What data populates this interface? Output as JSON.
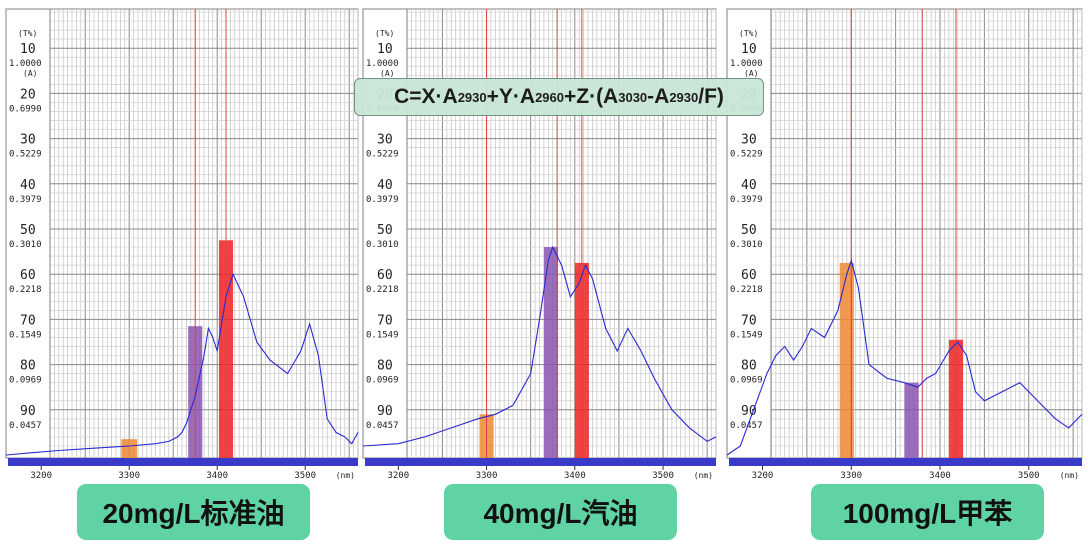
{
  "formula": {
    "prefix": "C=X·A",
    "s1": "2930",
    "mid1": "+Y·A",
    "s2": "2960",
    "mid2": "+Z·(A",
    "s3": "3030",
    "mid3": "-A",
    "s4": "2930",
    "suffix": "/F)"
  },
  "labels": [
    "20mg/L标准油",
    "40mg/L汽油",
    "100mg/L甲苯"
  ],
  "colors": {
    "spectrum": "#2a2ad6",
    "orange_bar": "#ee8833",
    "purple_bar": "#8a55b0",
    "red_bar": "#ee2222",
    "baseline_bar": "#3a3ac8",
    "label_box": "#5fd3a4",
    "formula_box": "#c9e6d6"
  },
  "chart_data": [
    {
      "type": "line",
      "caption": "20mg/L标准油",
      "transmittance_unit": "(T%)",
      "absorbance_unit": "(A)",
      "x_unit": "(nm)",
      "transmittance_ticks": [
        "10",
        "20",
        "30",
        "40",
        "50",
        "60",
        "70",
        "80",
        "90"
      ],
      "absorbance_ticks": [
        "1.0000",
        "0.6990",
        "0.5229",
        "0.3979",
        "0.3010",
        "0.2218",
        "0.1549",
        "0.0969",
        "0.0457"
      ],
      "x_ticks": [
        "3200",
        "3300",
        "3400",
        "3500"
      ],
      "xlim": [
        3160,
        3560
      ],
      "ylim_transmittance": [
        0,
        100
      ],
      "grid": true,
      "x": [
        3160,
        3190,
        3220,
        3260,
        3300,
        3330,
        3345,
        3355,
        3360,
        3365,
        3375,
        3385,
        3390,
        3395,
        3400,
        3410,
        3418,
        3430,
        3445,
        3460,
        3480,
        3495,
        3505,
        3515,
        3525,
        3535,
        3545,
        3553,
        3560
      ],
      "y": [
        100,
        99.5,
        99,
        98.5,
        98,
        97.5,
        97,
        96,
        95,
        93,
        87,
        78,
        72,
        74,
        77,
        65,
        60,
        65,
        75,
        79,
        82,
        77,
        71,
        78,
        92,
        95,
        96,
        97.5,
        95
      ],
      "highlight_bars": [
        {
          "band": 3300,
          "width": 18,
          "top_transmittance": 96.5,
          "color": "orange"
        },
        {
          "band": 3375,
          "width": 16,
          "top_transmittance": 71.5,
          "color": "purple"
        },
        {
          "band": 3410,
          "width": 16,
          "top_transmittance": 52.5,
          "color": "red"
        }
      ],
      "marker_lines": [
        3375,
        3410
      ]
    },
    {
      "type": "line",
      "caption": "40mg/L汽油",
      "transmittance_unit": "(T%)",
      "absorbance_unit": "(A)",
      "x_unit": "(nm)",
      "transmittance_ticks": [
        "10",
        "20",
        "30",
        "40",
        "50",
        "60",
        "70",
        "80",
        "90"
      ],
      "absorbance_ticks": [
        "1.0000",
        "0.6990",
        "0.5229",
        "0.3979",
        "0.3010",
        "0.2218",
        "0.1549",
        "0.0969",
        "0.0457"
      ],
      "x_ticks": [
        "3200",
        "3300",
        "3400",
        "3500"
      ],
      "xlim": [
        3160,
        3560
      ],
      "ylim_transmittance": [
        0,
        100
      ],
      "grid": true,
      "x": [
        3160,
        3200,
        3230,
        3260,
        3290,
        3310,
        3330,
        3350,
        3360,
        3370,
        3375,
        3385,
        3395,
        3405,
        3412,
        3420,
        3435,
        3448,
        3460,
        3475,
        3490,
        3510,
        3530,
        3550,
        3560
      ],
      "y": [
        98,
        97.5,
        96,
        94,
        92,
        91,
        89,
        82,
        70,
        57,
        54,
        58,
        65,
        62,
        58,
        61,
        72,
        77,
        72,
        77,
        83,
        90,
        94,
        97,
        96
      ],
      "highlight_bars": [
        {
          "band": 3300,
          "width": 16,
          "top_transmittance": 91,
          "color": "orange"
        },
        {
          "band": 3373,
          "width": 16,
          "top_transmittance": 54,
          "color": "purple"
        },
        {
          "band": 3408,
          "width": 16,
          "top_transmittance": 57.5,
          "color": "red"
        }
      ],
      "marker_lines": [
        3300,
        3380,
        3408
      ]
    },
    {
      "type": "line",
      "caption": "100mg/L甲苯",
      "transmittance_unit": "(T%)",
      "absorbance_unit": "(A)",
      "x_unit": "(nm)",
      "transmittance_ticks": [
        "10",
        "20",
        "30",
        "40",
        "50",
        "60",
        "70",
        "80",
        "90"
      ],
      "absorbance_ticks": [
        "1.0000",
        "0.6990",
        "0.5229",
        "0.3979",
        "0.3010",
        "0.2218",
        "0.1549",
        "0.0969",
        "0.0457"
      ],
      "x_ticks": [
        "3200",
        "3300",
        "3400",
        "3500"
      ],
      "xlim": [
        3160,
        3560
      ],
      "ylim_transmittance": [
        0,
        100
      ],
      "grid": true,
      "x": [
        3160,
        3175,
        3190,
        3205,
        3215,
        3225,
        3235,
        3245,
        3255,
        3270,
        3285,
        3295,
        3300,
        3308,
        3320,
        3340,
        3360,
        3375,
        3385,
        3395,
        3410,
        3420,
        3430,
        3440,
        3450,
        3470,
        3490,
        3510,
        3530,
        3545,
        3560
      ],
      "y": [
        100,
        98,
        90,
        82,
        78,
        76,
        79,
        76,
        72,
        74,
        68,
        60,
        57,
        63,
        80,
        83,
        84,
        85,
        83,
        82,
        77,
        75,
        78,
        86,
        88,
        86,
        84,
        88,
        92,
        94,
        91
      ],
      "highlight_bars": [
        {
          "band": 3295,
          "width": 16,
          "top_transmittance": 57.5,
          "color": "orange"
        },
        {
          "band": 3368,
          "width": 16,
          "top_transmittance": 84,
          "color": "purple"
        },
        {
          "band": 3418,
          "width": 16,
          "top_transmittance": 74.5,
          "color": "red"
        }
      ],
      "marker_lines": [
        3300,
        3380,
        3418
      ]
    }
  ]
}
